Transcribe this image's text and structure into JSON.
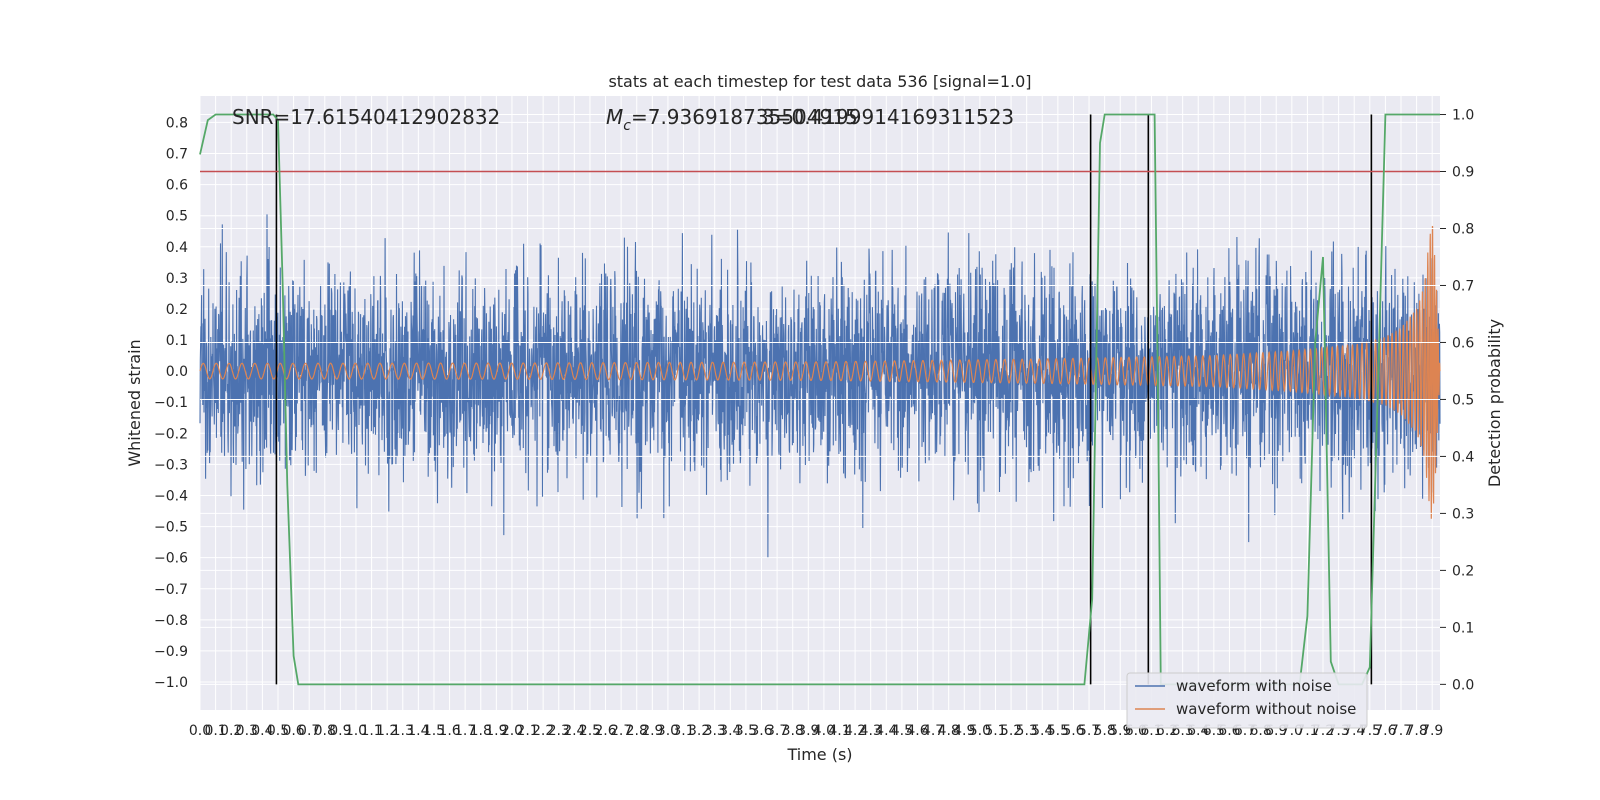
{
  "chart_data": {
    "type": "line",
    "title": "stats at each timestep for test data 536 [signal=1.0]",
    "xlabel": "Time (s)",
    "ylabel": "Whitened strain",
    "y2label": "Detection probability",
    "xlim": [
      0.0,
      7.95
    ],
    "ylim": [
      -1.09,
      0.885
    ],
    "y2lim": [
      -0.045,
      1.0325
    ],
    "xticks": [
      "0.0",
      "0.1",
      "0.2",
      "0.3",
      "0.4",
      "0.5",
      "0.6",
      "0.7",
      "0.8",
      "0.9",
      "1.0",
      "1.1",
      "1.2",
      "1.3",
      "1.4",
      "1.5",
      "1.6",
      "1.7",
      "1.8",
      "1.9",
      "2.0",
      "2.1",
      "2.2",
      "2.3",
      "2.4",
      "2.5",
      "2.6",
      "2.7",
      "2.8",
      "2.9",
      "3.0",
      "3.1",
      "3.2",
      "3.3",
      "3.4",
      "3.5",
      "3.6",
      "3.7",
      "3.8",
      "3.9",
      "4.0",
      "4.1",
      "4.2",
      "4.3",
      "4.4",
      "4.5",
      "4.6",
      "4.7",
      "4.8",
      "4.9",
      "5.0",
      "5.1",
      "5.2",
      "5.3",
      "5.4",
      "5.5",
      "5.6",
      "5.7",
      "5.8",
      "5.9",
      "6.0",
      "6.1",
      "6.2",
      "6.3",
      "6.4",
      "6.5",
      "6.6",
      "6.7",
      "6.8",
      "6.9",
      "7.0",
      "7.1",
      "7.2",
      "7.3",
      "7.4",
      "7.5",
      "7.6",
      "7.7",
      "7.8",
      "7.9"
    ],
    "yticks": [
      "0.8",
      "0.7",
      "0.6",
      "0.5",
      "0.4",
      "0.3",
      "0.2",
      "0.1",
      "0.0",
      "−0.1",
      "−0.2",
      "−0.3",
      "−0.4",
      "−0.5",
      "−0.6",
      "−0.7",
      "−0.8",
      "−0.9",
      "−1.0"
    ],
    "y2ticks": [
      "1.0",
      "0.9",
      "0.8",
      "0.7",
      "0.6",
      "0.5",
      "0.4",
      "0.3",
      "0.2",
      "0.1",
      "0.0"
    ],
    "annotations": {
      "snr": "SNR=17.61540412902832",
      "mc_prefix": "M",
      "mc_sub": "c",
      "mc_value": "=7.936918735504915",
      "overlap": "3=0.4199914169311523"
    },
    "series": [
      {
        "name": "waveform with noise",
        "color": "#4c72b0",
        "envelope": {
          "x": [
            0.0,
            7.8,
            7.9,
            7.95
          ],
          "upper": [
            0.42,
            0.45,
            0.55,
            0.4
          ],
          "lower": [
            -0.42,
            -0.45,
            -0.55,
            -0.4
          ]
        }
      },
      {
        "name": "waveform without noise",
        "color": "#dd8452",
        "envelope": {
          "x": [
            0.0,
            2.0,
            4.0,
            5.5,
            6.5,
            7.0,
            7.4,
            7.6,
            7.7,
            7.8,
            7.85,
            7.88,
            7.9,
            7.92,
            7.95
          ],
          "amp": [
            0.025,
            0.026,
            0.03,
            0.04,
            0.05,
            0.065,
            0.085,
            0.11,
            0.14,
            0.2,
            0.28,
            0.42,
            0.5,
            0.35,
            0.0
          ]
        }
      },
      {
        "name": "",
        "color": "#55a868",
        "axis": "right",
        "x": [
          0.0,
          0.05,
          0.1,
          0.47,
          0.5,
          0.53,
          0.56,
          0.6,
          0.63,
          5.67,
          5.72,
          5.77,
          5.8,
          6.12,
          6.14,
          6.16,
          7.05,
          7.1,
          7.15,
          7.2,
          7.25,
          7.3,
          7.38,
          7.45,
          7.5,
          7.55,
          7.6,
          7.95
        ],
        "y": [
          0.93,
          0.99,
          1.0,
          1.0,
          0.99,
          0.7,
          0.35,
          0.05,
          0.0,
          0.0,
          0.15,
          0.95,
          1.0,
          1.0,
          0.55,
          0.0,
          0.0,
          0.12,
          0.6,
          0.75,
          0.04,
          0.0,
          0.0,
          0.0,
          0.03,
          0.5,
          1.0,
          1.0
        ]
      }
    ],
    "threshold": {
      "value": 0.9,
      "axis": "right",
      "color": "#c44e52"
    },
    "vlines": [
      0.49,
      5.71,
      6.08,
      7.51
    ],
    "legend": {
      "placement": "lower-right",
      "entries": [
        "waveform with noise",
        "waveform without noise"
      ]
    },
    "grid": true,
    "background": "#eaeaf2"
  }
}
